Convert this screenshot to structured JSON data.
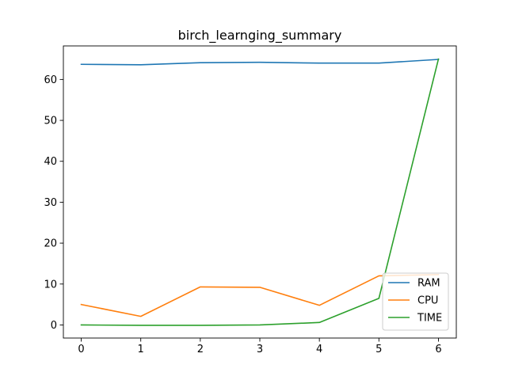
{
  "chart_data": {
    "type": "line",
    "title": "birch_learnging_summary",
    "xlabel": "",
    "ylabel": "",
    "x": [
      0,
      1,
      2,
      3,
      4,
      5,
      6
    ],
    "xlim": [
      -0.3,
      6.3
    ],
    "ylim": [
      -3.2,
      68.2
    ],
    "xticks": [
      0,
      1,
      2,
      3,
      4,
      5,
      6
    ],
    "yticks": [
      0,
      10,
      20,
      30,
      40,
      50,
      60
    ],
    "grid": false,
    "legend_position": "lower right",
    "series": [
      {
        "name": "RAM",
        "color": "#1f77b4",
        "values": [
          63.7,
          63.6,
          64.1,
          64.2,
          64.0,
          64.0,
          64.9
        ]
      },
      {
        "name": "CPU",
        "color": "#ff7f0e",
        "values": [
          5.0,
          2.1,
          9.3,
          9.2,
          4.8,
          12.0,
          12.3
        ]
      },
      {
        "name": "TIME",
        "color": "#2ca02c",
        "values": [
          0.0,
          -0.1,
          -0.1,
          0.0,
          0.6,
          6.5,
          65.0
        ]
      }
    ]
  }
}
